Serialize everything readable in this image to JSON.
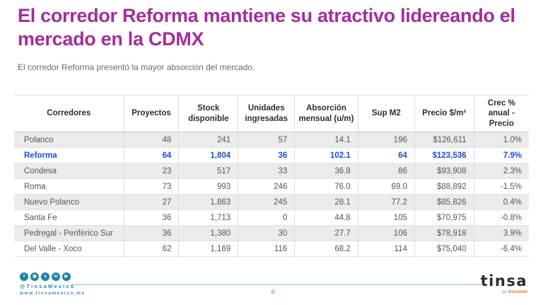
{
  "slide": {
    "title": "El corredor Reforma mantiene su atractivo lidereando el mercado en la CDMX",
    "subtitle": "El corredor Reforma presentó la mayor absorción del mercado."
  },
  "table": {
    "columns": [
      "Corredores",
      "Proyectos",
      "Stock disponible",
      "Unidades ingresadas",
      "Absorción mensual (u/m)",
      "Sup M2",
      "Precio $/m²",
      "Crec % anual - Precio"
    ],
    "rows": [
      [
        "Polanco",
        "48",
        "241",
        "57",
        "14.1",
        "196",
        "$126,611",
        "1.0%"
      ],
      [
        "Reforma",
        "64",
        "1,804",
        "36",
        "102.1",
        "64",
        "$123,536",
        "7.9%"
      ],
      [
        "Condesa",
        "23",
        "517",
        "33",
        "36.8",
        "86",
        "$93,908",
        "2.3%"
      ],
      [
        "Roma",
        "73",
        "993",
        "246",
        "76.0",
        "69.0",
        "$88,892",
        "-1.5%"
      ],
      [
        "Nuevo Polanco",
        "27",
        "1,863",
        "245",
        "28.1",
        "77.2",
        "$85,826",
        "0.4%"
      ],
      [
        "Santa Fe",
        "36",
        "1,713",
        "0",
        "44.8",
        "105",
        "$70,975",
        "-0.8%"
      ],
      [
        "Pedregal - Periférico Sur",
        "36",
        "1,380",
        "30",
        "27.7",
        "106",
        "$78,918",
        "3.9%"
      ],
      [
        "Del Valle - Xoco",
        "62",
        "1,169",
        "116",
        "68.2",
        "114",
        "$75,040",
        "-6.4%"
      ]
    ],
    "highlighted_row": "Reforma"
  },
  "footer": {
    "social_icons": [
      "facebook-icon",
      "instagram-icon",
      "twitter-icon",
      "linkedin-icon",
      "youtube-icon"
    ],
    "social_glyphs": {
      "facebook": "f",
      "instagram": "◉",
      "twitter": "x",
      "linkedin": "in",
      "youtube": "▶"
    },
    "social_handle": "@TinsaMexico",
    "website": "www.tinsamexico.mx",
    "page_number": "6",
    "logo_text": "tinsa",
    "logo_by": "by",
    "logo_byline": "Accumin"
  },
  "colors": {
    "title_magenta": "#a42c9e",
    "highlight_blue": "#1d4fdb",
    "accent_teal": "#1e82a8",
    "row_alt_gray": "#ebebeb",
    "logo_navy": "#262b37",
    "logo_orange": "#f26522"
  }
}
